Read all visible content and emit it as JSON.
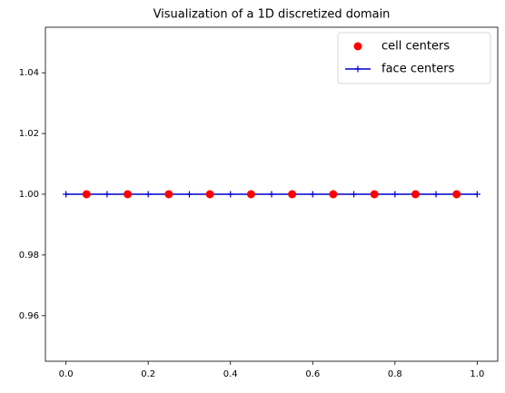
{
  "chart_data": {
    "type": "line",
    "title": "Visualization of a 1D discretized domain",
    "series": [
      {
        "name": "cell centers",
        "color": "#ff0000",
        "marker": "o",
        "linestyle": "none",
        "x": [
          0.05,
          0.15,
          0.25,
          0.35,
          0.45,
          0.55,
          0.65,
          0.75,
          0.85,
          0.95
        ],
        "values": [
          1,
          1,
          1,
          1,
          1,
          1,
          1,
          1,
          1,
          1
        ]
      },
      {
        "name": "face centers",
        "color": "#0000cd",
        "marker": "+",
        "linestyle": "solid",
        "x": [
          0,
          0.1,
          0.2,
          0.3,
          0.4,
          0.5,
          0.6,
          0.7,
          0.8,
          0.9,
          1
        ],
        "values": [
          1,
          1,
          1,
          1,
          1,
          1,
          1,
          1,
          1,
          1,
          1
        ]
      }
    ],
    "xlim": [
      -0.05,
      1.05
    ],
    "xticks": [
      {
        "value": 0,
        "label": "0.0"
      },
      0.2,
      0.4,
      0.6,
      0.8,
      {
        "value": 1,
        "label": "1.0"
      }
    ],
    "ylim": [
      0.945,
      1.055
    ],
    "yticks": [
      0.96,
      0.98,
      {
        "value": 1,
        "label": "1.00"
      },
      1.02,
      1.04
    ],
    "legend": "upper right"
  }
}
